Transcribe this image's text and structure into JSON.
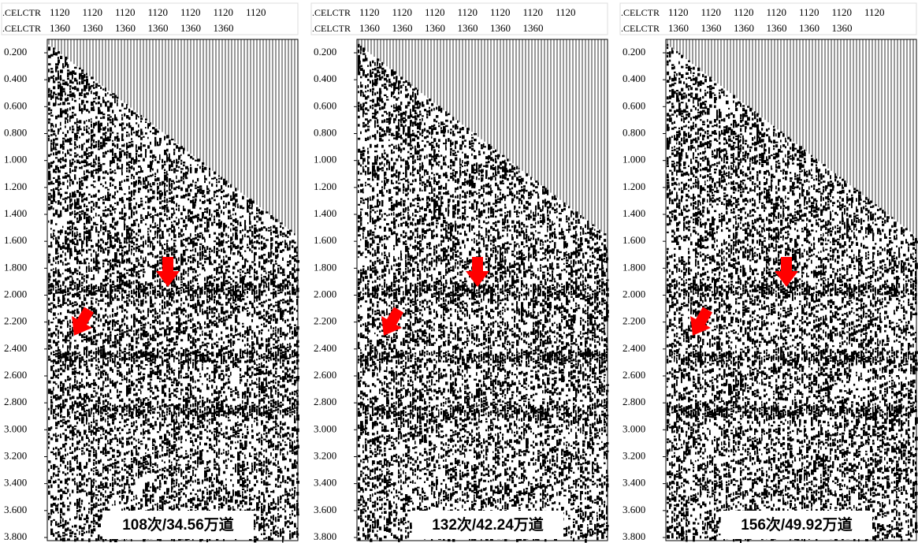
{
  "panels": [
    {
      "header": {
        "row1_label": ".CELCTR",
        "row1_values": [
          "1120",
          "1120",
          "1120",
          "1120",
          "1120",
          "1120",
          "1120"
        ],
        "row2_label": ".CELCTR",
        "row2_values": [
          "1360",
          "1360",
          "1360",
          "1360",
          "1360",
          "1360"
        ]
      },
      "time_ticks": [
        "0.200",
        "0.400",
        "0.600",
        "0.800",
        "1.000",
        "1.200",
        "1.400",
        "1.600",
        "1.800",
        "2.000",
        "2.200",
        "2.400",
        "2.600",
        "2.800",
        "3.000",
        "3.200",
        "3.400",
        "3.600",
        "3.800"
      ],
      "caption": "108次/34.56万道"
    },
    {
      "header": {
        "row1_label": ".CELCTR",
        "row1_values": [
          "1120",
          "1120",
          "1120",
          "1120",
          "1120",
          "1120",
          "1120"
        ],
        "row2_label": ".CELCTR",
        "row2_values": [
          "1360",
          "1360",
          "1360",
          "1360",
          "1360",
          "1360"
        ]
      },
      "time_ticks": [
        "0.200",
        "0.400",
        "0.600",
        "0.800",
        "1.000",
        "1.200",
        "1.400",
        "1.600",
        "1.800",
        "2.000",
        "2.200",
        "2.400",
        "2.600",
        "2.800",
        "3.000",
        "3.200",
        "3.400",
        "3.600",
        "3.800"
      ],
      "caption": "132次/42.24万道"
    },
    {
      "header": {
        "row1_label": ".CELCTR",
        "row1_values": [
          "1120",
          "1120",
          "1120",
          "1120",
          "1120",
          "1120",
          "1120"
        ],
        "row2_label": ".CELCTR",
        "row2_values": [
          "1360",
          "1360",
          "1360",
          "1360",
          "1360",
          "1360"
        ]
      },
      "time_ticks": [
        "0.200",
        "0.400",
        "0.600",
        "0.800",
        "1.000",
        "1.200",
        "1.400",
        "1.600",
        "1.800",
        "2.000",
        "2.200",
        "2.400",
        "2.600",
        "2.800",
        "3.000",
        "3.200",
        "3.400",
        "3.600",
        "3.800"
      ],
      "caption": "156次/49.92万道"
    }
  ]
}
